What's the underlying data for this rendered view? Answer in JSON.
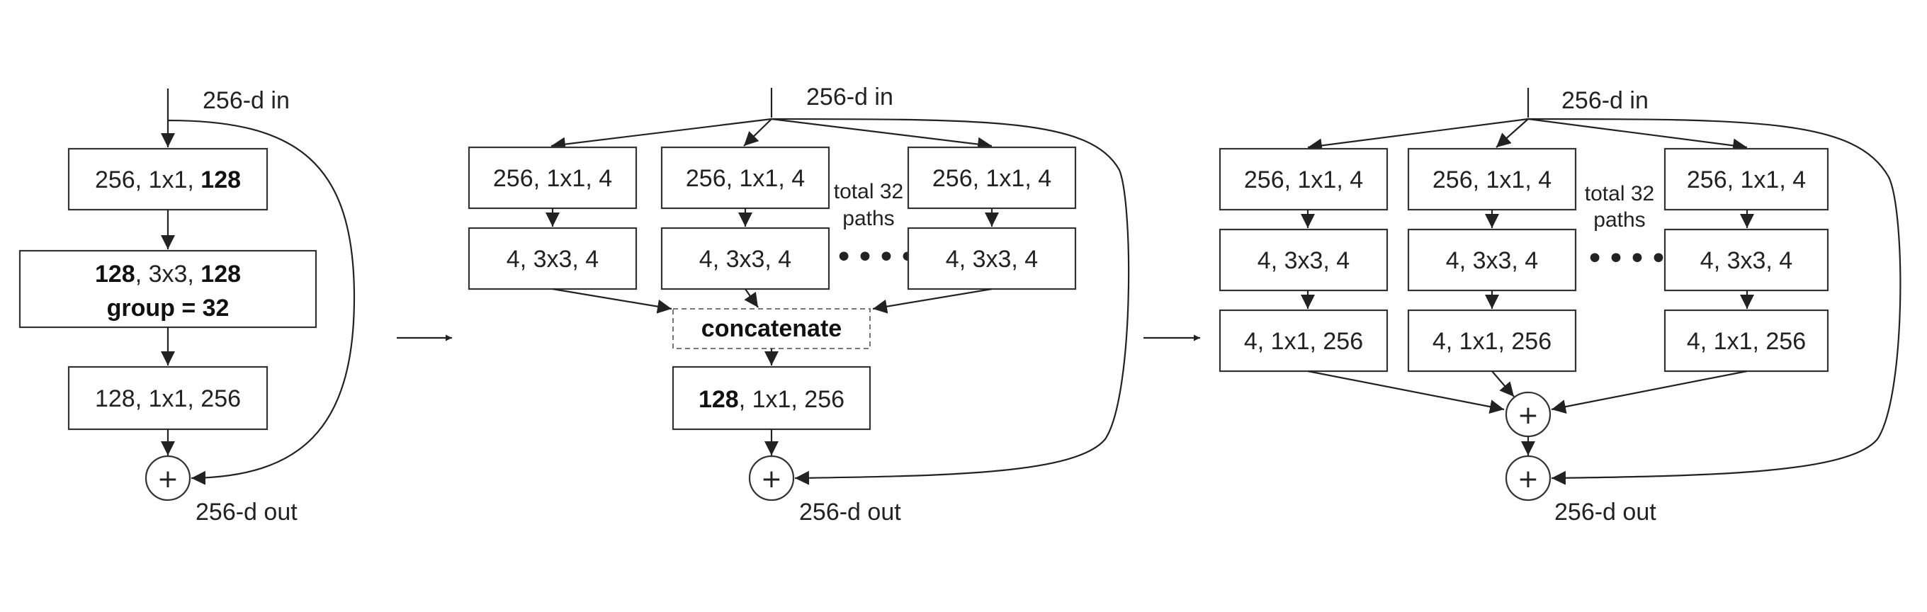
{
  "diagram_a": {
    "input_label": "256-d in",
    "output_label": "256-d out",
    "box1": {
      "pre": "256, 1x1, ",
      "bold": "128"
    },
    "box2": {
      "bold1": "128",
      "mid": ", 3x3, ",
      "bold2": "128",
      "line2": "group = 32"
    },
    "box3": "128, 1x1, 256",
    "sum_symbol": "+"
  },
  "diagram_b": {
    "input_label": "256-d in",
    "output_label": "256-d out",
    "path_top": "256, 1x1, 4",
    "path_mid": "4, 3x3, 4",
    "paths_note_line1": "total 32",
    "paths_note_line2": "paths",
    "ellipsis": "••••",
    "concat_label": "concatenate",
    "final_box": {
      "bold": "128",
      "rest": ", 1x1, 256"
    },
    "sum_symbol": "+"
  },
  "diagram_c": {
    "input_label": "256-d in",
    "output_label": "256-d out",
    "path_top": "256, 1x1, 4",
    "path_mid": "4, 3x3, 4",
    "path_bottom": "4, 1x1, 256",
    "paths_note_line1": "total 32",
    "paths_note_line2": "paths",
    "ellipsis": "••••",
    "sum_symbol": "+"
  }
}
